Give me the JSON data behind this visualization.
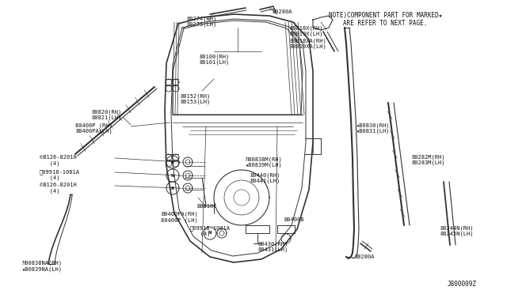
{
  "bg_color": "#ffffff",
  "line_color": "#333333",
  "note_line1": "NOTE)COMPONENT PART FOR MARKED★",
  "note_line2": "     ARE REFER TO NEXT PAGE.",
  "diagram_id": "J800009Z",
  "fig_w": 6.4,
  "fig_h": 3.72,
  "dpi": 100
}
